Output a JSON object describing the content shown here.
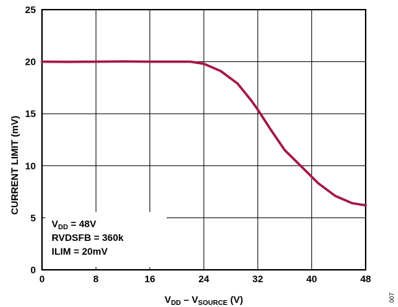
{
  "chart_data": {
    "type": "line",
    "title": "",
    "xlabel": {
      "main": "V",
      "sub1": "DD",
      "sep": " – V",
      "sub2": "SOURCE",
      "unit": " (V)"
    },
    "ylabel": "CURRENT LIMIT (mV)",
    "xlim": [
      0,
      48
    ],
    "ylim": [
      0,
      25
    ],
    "xticks": [
      "0",
      "8",
      "16",
      "24",
      "32",
      "40",
      "48"
    ],
    "yticks": [
      "0",
      "5",
      "10",
      "15",
      "20",
      "25"
    ],
    "grid": true,
    "series": [
      {
        "color": "#a3174a",
        "x": [
          0,
          4,
          8,
          12,
          16,
          20,
          22,
          24,
          26.5,
          29,
          31,
          32,
          34,
          36,
          38.5,
          41,
          43.5,
          46,
          48
        ],
        "y": [
          20.0,
          19.98,
          20.0,
          20.02,
          20.0,
          20.0,
          20.0,
          19.8,
          19.1,
          17.9,
          16.3,
          15.4,
          13.4,
          11.5,
          9.9,
          8.3,
          7.1,
          6.4,
          6.2
        ]
      }
    ],
    "annotations": [
      {
        "main": "V",
        "sub": "DD",
        "rest": " = 48V"
      },
      {
        "main": "RVDSFB = 360k"
      },
      {
        "main": "ILIM = 20mV"
      }
    ],
    "code": "007"
  }
}
